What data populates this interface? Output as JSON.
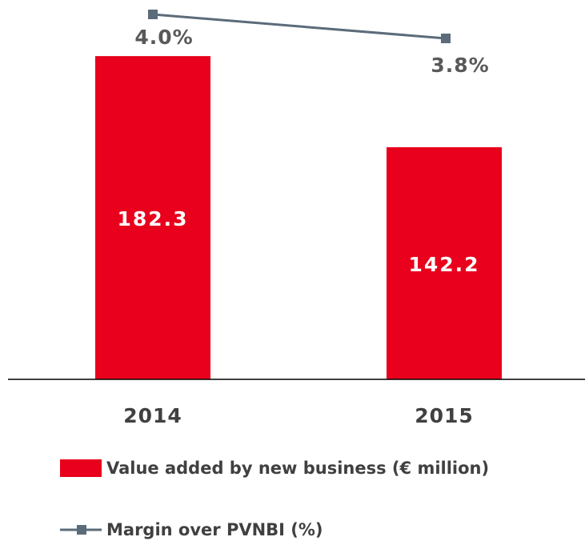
{
  "chart_data": {
    "type": "bar",
    "categories": [
      "2014",
      "2015"
    ],
    "series": [
      {
        "name": "Value added by new business (€ million)",
        "type": "bar",
        "color": "#e8001c",
        "values": [
          182.3,
          142.2
        ]
      },
      {
        "name": "Margin over PVNBI (%)",
        "type": "line",
        "color": "#5b6b7a",
        "axis": "y2",
        "values": [
          4.0,
          3.8
        ],
        "value_labels": [
          "4.0%",
          "3.8%"
        ]
      }
    ],
    "ylim": [
      40,
      207
    ],
    "y2lim": [
      0.96,
      4.12
    ]
  }
}
